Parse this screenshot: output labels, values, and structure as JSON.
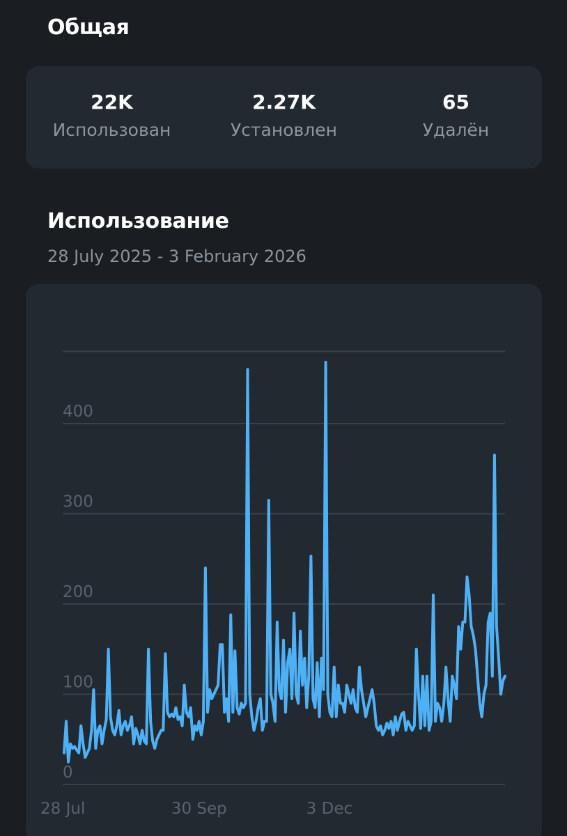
{
  "general": {
    "title": "Общая",
    "stats": [
      {
        "value": "22K",
        "label": "Использован"
      },
      {
        "value": "2.27K",
        "label": "Установлен"
      },
      {
        "value": "65",
        "label": "Удалён"
      }
    ]
  },
  "usage": {
    "title": "Использование",
    "date_range": "28 July 2025 - 3 February 2026"
  },
  "colors": {
    "background": "#1a1e23",
    "card": "#222931",
    "line": "#4fb1f5",
    "grid": "#39414a"
  },
  "chart_data": {
    "type": "line",
    "title": "",
    "xlabel": "",
    "ylabel": "",
    "ylim": [
      0,
      480
    ],
    "grid": true,
    "y_ticks": [
      0,
      100,
      200,
      300,
      400
    ],
    "x_tick_labels": [
      {
        "label": "28 Jul",
        "day": 0
      },
      {
        "label": "30 Sep",
        "day": 64
      },
      {
        "label": "3 Dec",
        "day": 128
      }
    ],
    "x_start": "2025-07-28",
    "x_end": "2026-02-03",
    "series": [
      {
        "name": "",
        "color": "#4fb1f5",
        "values": [
          35,
          70,
          25,
          45,
          40,
          42,
          38,
          35,
          65,
          45,
          30,
          35,
          40,
          60,
          105,
          40,
          60,
          65,
          45,
          60,
          72,
          150,
          75,
          60,
          55,
          65,
          82,
          55,
          65,
          70,
          60,
          65,
          75,
          45,
          62,
          55,
          45,
          60,
          48,
          45,
          150,
          70,
          48,
          40,
          50,
          55,
          60,
          60,
          145,
          80,
          75,
          78,
          75,
          85,
          72,
          75,
          65,
          110,
          80,
          75,
          85,
          50,
          65,
          60,
          70,
          55,
          70,
          240,
          80,
          105,
          95,
          100,
          105,
          110,
          155,
          155,
          80,
          95,
          70,
          188,
          80,
          148,
          85,
          78,
          90,
          85,
          90,
          460,
          100,
          75,
          60,
          70,
          85,
          95,
          60,
          70,
          70,
          315,
          100,
          90,
          70,
          180,
          105,
          95,
          160,
          80,
          135,
          150,
          95,
          190,
          100,
          90,
          170,
          110,
          140,
          85,
          120,
          253,
          95,
          85,
          135,
          75,
          140,
          105,
          468,
          100,
          80,
          75,
          130,
          75,
          110,
          90,
          90,
          80,
          110,
          100,
          90,
          105,
          85,
          80,
          130,
          105,
          90,
          75,
          85,
          95,
          105,
          90,
          65,
          60,
          65,
          55,
          60,
          68,
          62,
          70,
          55,
          75,
          60,
          70,
          78,
          80,
          60,
          70,
          65,
          60,
          65,
          150,
          100,
          62,
          120,
          65,
          120,
          60,
          70,
          210,
          70,
          90,
          85,
          70,
          90,
          130,
          95,
          70,
          120,
          110,
          95,
          175,
          150,
          180,
          180,
          230,
          210,
          175,
          165,
          150,
          120,
          90,
          75,
          100,
          110,
          180,
          190,
          120,
          365,
          175,
          140,
          100,
          115,
          120
        ]
      }
    ]
  }
}
